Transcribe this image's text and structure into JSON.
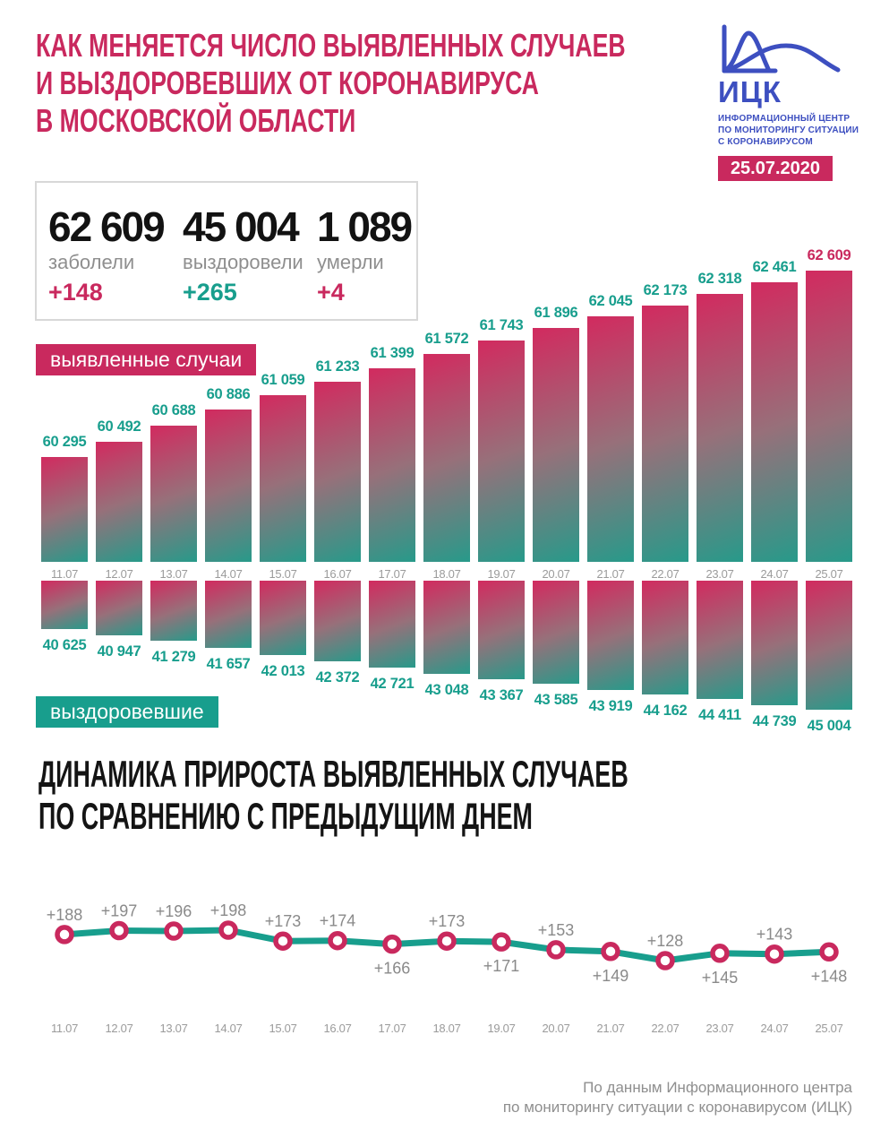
{
  "header": {
    "title_lines": [
      "КАК МЕНЯЕТСЯ ЧИСЛО ВЫЯВЛЕННЫХ СЛУЧАЕВ",
      "И ВЫЗДОРОВЕВШИХ ОТ КОРОНАВИРУСА",
      "В МОСКОВСКОЙ ОБЛАСТИ"
    ],
    "logo": {
      "abbr": "ИЦК",
      "subtitle_lines": [
        "ИНФОРМАЦИОННЫЙ ЦЕНТР",
        "ПО МОНИТОРИНГУ СИТУАЦИИ",
        "С КОРОНАВИРУСОМ"
      ],
      "date": "25.07.2020"
    }
  },
  "summary": {
    "cases": {
      "value": "62 609",
      "label": "заболели",
      "delta": "+148"
    },
    "recovered": {
      "value": "45 004",
      "label": "выздоровели",
      "delta": "+265"
    },
    "deaths": {
      "value": "1 089",
      "label": "умерли",
      "delta": "+4"
    }
  },
  "section_title_lines": [
    "ДИНАМИКА ПРИРОСТА ВЫЯВЛЕННЫХ СЛУЧАЕВ",
    "ПО СРАВНЕНИЮ С ПРЕДЫДУЩИМ ДНЕМ"
  ],
  "footer_lines": [
    "По данным Информационного центра",
    "по мониторингу ситуации с коронавирусом (ИЦК)"
  ],
  "colors": {
    "crimson": "#c9295e",
    "teal": "#189e8d",
    "blue": "#3d4fc0",
    "bar_gradient_start": "#d22a5f",
    "bar_gradient_end": "#279a8a",
    "gray_text": "#8f8f8f",
    "axis_text": "#9b9b9b"
  },
  "chart_data": [
    {
      "id": "cases",
      "type": "bar",
      "title": "выявленные случаи",
      "categories": [
        "11.07",
        "12.07",
        "13.07",
        "14.07",
        "15.07",
        "16.07",
        "17.07",
        "18.07",
        "19.07",
        "20.07",
        "21.07",
        "22.07",
        "23.07",
        "24.07",
        "25.07"
      ],
      "values": [
        60295,
        60492,
        60688,
        60886,
        61059,
        61233,
        61399,
        61572,
        61743,
        61896,
        62045,
        62173,
        62318,
        62461,
        62609
      ],
      "ylim": [
        59000,
        62660
      ],
      "orientation": "up",
      "value_label_color": "#189e8d",
      "highlight_last": true,
      "highlight_last_color": "#c9295e"
    },
    {
      "id": "recovered",
      "type": "bar",
      "title": "выздоровевшие",
      "categories": [
        "11.07",
        "12.07",
        "13.07",
        "14.07",
        "15.07",
        "16.07",
        "17.07",
        "18.07",
        "19.07",
        "20.07",
        "21.07",
        "22.07",
        "23.07",
        "24.07",
        "25.07"
      ],
      "values": [
        40625,
        40947,
        41279,
        41657,
        42013,
        42372,
        42721,
        43048,
        43367,
        43585,
        43919,
        44162,
        44411,
        44739,
        45004
      ],
      "ylim": [
        38000,
        45300
      ],
      "orientation": "down",
      "value_label_color": "#189e8d",
      "highlight_last": false
    },
    {
      "id": "daily_increase",
      "type": "line",
      "title": "ДИНАМИКА ПРИРОСТА ВЫЯВЛЕННЫХ СЛУЧАЕВ ПО СРАВНЕНИЮ С ПРЕДЫДУЩИМ ДНЕМ",
      "categories": [
        "11.07",
        "12.07",
        "13.07",
        "14.07",
        "15.07",
        "16.07",
        "17.07",
        "18.07",
        "19.07",
        "20.07",
        "21.07",
        "22.07",
        "23.07",
        "24.07",
        "25.07"
      ],
      "values": [
        188,
        197,
        196,
        198,
        173,
        174,
        166,
        173,
        171,
        153,
        149,
        128,
        145,
        143,
        148
      ],
      "label_prefix": "+",
      "labels_below_indices": [
        6,
        8,
        10,
        12,
        14
      ],
      "ylim": [
        120,
        210
      ],
      "line_color": "#189e8d",
      "marker_stroke": "#c9295e",
      "marker_fill": "#ffffff"
    }
  ]
}
